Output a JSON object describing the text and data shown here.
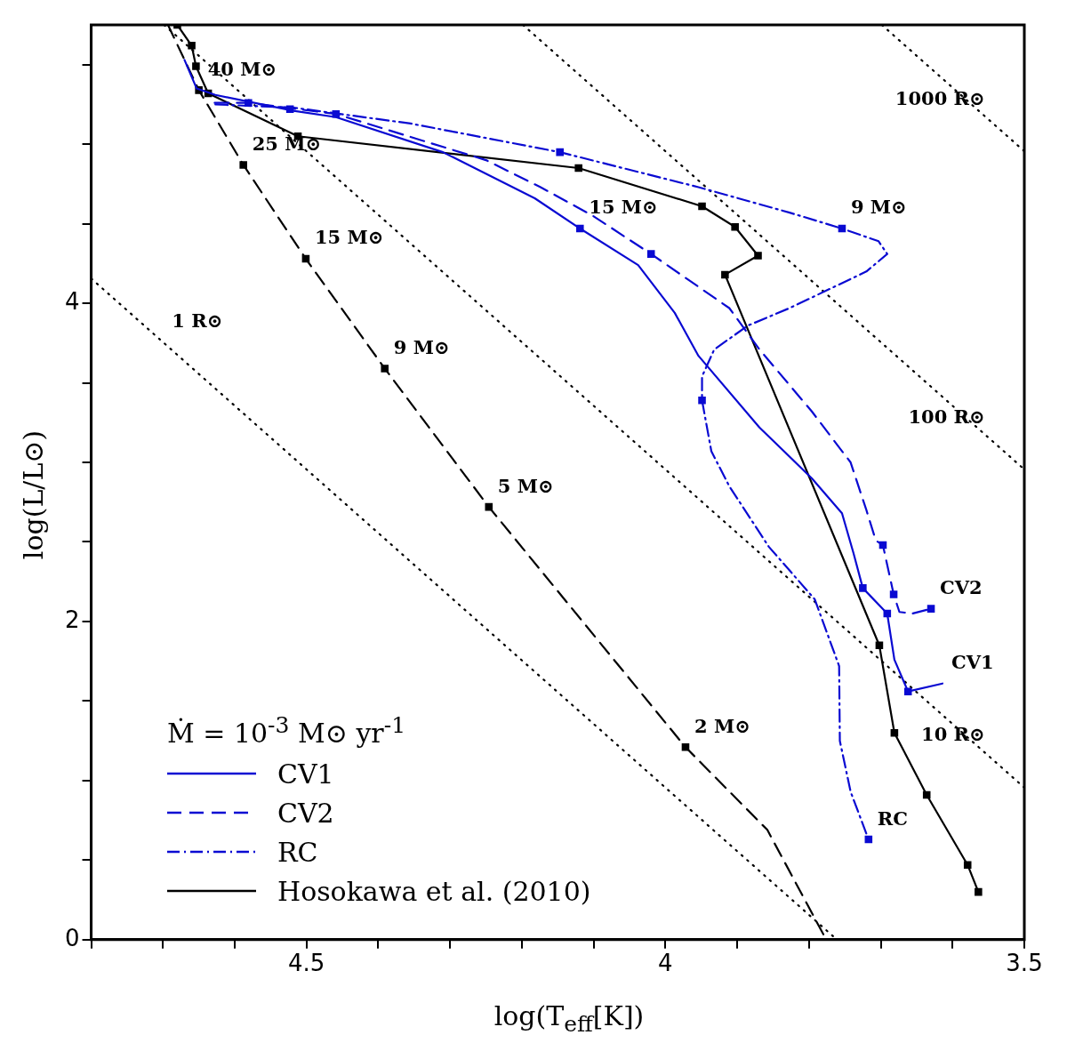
{
  "chart_data": {
    "type": "line",
    "xlabel": "log(T$_{eff}$[K])",
    "ylabel": "log(L/L⊙)",
    "legend_title": "Ṁ = 10$^{-3}$ M⊙ yr$^{-1}$",
    "legend": "bottom left",
    "grid": false,
    "xlim": [
      4.8,
      3.5
    ],
    "xticks": [
      {
        "value": 4.8,
        "label": null
      },
      {
        "value": 4.7,
        "label": null
      },
      {
        "value": 4.6,
        "label": null
      },
      4.5,
      {
        "value": 4.4,
        "label": null
      },
      {
        "value": 4.3,
        "label": null
      },
      {
        "value": 4.2,
        "label": null
      },
      {
        "value": 4.1,
        "label": null
      },
      4,
      {
        "value": 3.9,
        "label": null
      },
      {
        "value": 3.8,
        "label": null
      },
      {
        "value": 3.7,
        "label": null
      },
      {
        "value": 3.6,
        "label": null
      },
      3.5
    ],
    "ylim": [
      0,
      5.75
    ],
    "yticks": [
      0,
      {
        "value": 0.5,
        "label": null
      },
      {
        "value": 1,
        "label": null
      },
      {
        "value": 1.5,
        "label": null
      },
      2,
      {
        "value": 2.5,
        "label": null
      },
      {
        "value": 3,
        "label": null
      },
      {
        "value": 3.5,
        "label": null
      },
      4,
      {
        "value": 4.5,
        "label": null
      },
      {
        "value": 5,
        "label": null
      },
      {
        "value": 5.5,
        "label": null
      }
    ],
    "series": [
      {
        "name": "CV1",
        "type": "line",
        "color": "#0a0ad2",
        "line_style": "solid",
        "marker": "none",
        "x": [
          4.67,
          4.653,
          4.627,
          4.518,
          4.459,
          4.31,
          4.182,
          4.119,
          4.038,
          3.987,
          3.954,
          3.869,
          3.796,
          3.754,
          3.738,
          3.725,
          3.691,
          3.681,
          3.662,
          3.614
        ],
        "values": [
          5.53,
          5.35,
          5.31,
          5.21,
          5.17,
          4.95,
          4.66,
          4.47,
          4.24,
          3.94,
          3.67,
          3.22,
          2.9,
          2.68,
          2.43,
          2.21,
          2.05,
          1.76,
          1.56,
          1.61
        ]
      },
      {
        "name": "CV2",
        "type": "line",
        "color": "#0a0ad2",
        "line_style": "dashed",
        "marker": "none",
        "x": [
          4.628,
          4.581,
          4.459,
          4.25,
          4.174,
          4.101,
          4.02,
          3.911,
          3.869,
          3.796,
          3.742,
          3.72,
          3.707,
          3.697,
          3.682,
          3.674,
          3.656,
          3.63
        ],
        "values": [
          5.26,
          5.26,
          5.19,
          4.9,
          4.73,
          4.55,
          4.31,
          3.97,
          3.71,
          3.32,
          3.0,
          2.7,
          2.51,
          2.48,
          2.17,
          2.06,
          2.05,
          2.08
        ]
      },
      {
        "name": "RC",
        "type": "line",
        "color": "#0a0ad2",
        "line_style": "dashdot",
        "marker": "none",
        "x": [
          4.627,
          4.518,
          4.355,
          4.147,
          3.954,
          3.827,
          3.754,
          3.703,
          3.691,
          3.72,
          3.827,
          3.885,
          3.932,
          3.949,
          3.949,
          3.936,
          3.911,
          3.856,
          3.792,
          3.758,
          3.757,
          3.742,
          3.717
        ],
        "values": [
          5.25,
          5.23,
          5.13,
          4.95,
          4.73,
          4.57,
          4.47,
          4.39,
          4.31,
          4.2,
          3.97,
          3.86,
          3.71,
          3.54,
          3.39,
          3.07,
          2.85,
          2.47,
          2.14,
          1.72,
          1.25,
          0.93,
          0.63
        ]
      },
      {
        "name": "Hosokawa et al. (2010)",
        "type": "line",
        "color": "#000000",
        "line_style": "solid",
        "marker": "square",
        "x": [
          4.68,
          4.66,
          4.654,
          4.637,
          4.512,
          4.121,
          3.949,
          3.903,
          3.871,
          3.917,
          3.702,
          3.681,
          3.636,
          3.579,
          3.564
        ],
        "values": [
          5.75,
          5.62,
          5.49,
          5.32,
          5.05,
          4.85,
          4.61,
          4.48,
          4.3,
          4.18,
          1.85,
          1.3,
          0.91,
          0.47,
          0.3
        ]
      },
      {
        "type": "scatter",
        "color": "#0a0ad2",
        "marker": "square",
        "x": [
          4.581,
          4.523,
          4.459,
          4.119,
          4.147,
          4.02,
          3.754,
          3.949,
          3.725,
          3.691,
          3.697,
          3.682,
          3.63,
          3.662,
          3.717
        ],
        "values": [
          5.26,
          5.22,
          5.19,
          4.47,
          4.95,
          4.31,
          4.47,
          3.39,
          2.21,
          2.05,
          2.48,
          2.17,
          2.08,
          1.56,
          0.63
        ]
      },
      {
        "type": "line",
        "color": "#000000",
        "line_style": "dashed",
        "marker": "none",
        "x": [
          4.693,
          4.65,
          4.588,
          4.501,
          4.391,
          4.246,
          3.972,
          3.858,
          3.776
        ],
        "values": [
          5.75,
          5.34,
          4.87,
          4.28,
          3.59,
          2.72,
          1.21,
          0.69,
          0
        ]
      },
      {
        "type": "scatter",
        "color": "#000000",
        "marker": "square",
        "x": [
          4.65,
          4.588,
          4.501,
          4.391,
          4.246,
          3.972
        ],
        "values": [
          5.34,
          4.87,
          4.28,
          3.59,
          2.72,
          1.21
        ]
      },
      {
        "type": "line",
        "color": "#000000",
        "line_style": "dotted",
        "marker": "none",
        "x": [
          4.8,
          3.761
        ],
        "values": [
          4.156,
          0
        ]
      },
      {
        "type": "line",
        "color": "#000000",
        "line_style": "dotted",
        "marker": "none",
        "x": [
          4.6985,
          3.5
        ],
        "values": [
          5.75,
          0.956
        ]
      },
      {
        "type": "line",
        "color": "#000000",
        "line_style": "dotted",
        "marker": "none",
        "x": [
          4.1985,
          3.5
        ],
        "values": [
          5.75,
          2.956
        ]
      },
      {
        "type": "line",
        "color": "#000000",
        "line_style": "dotted",
        "marker": "none",
        "x": [
          3.6985,
          3.5
        ],
        "values": [
          5.75,
          4.956
        ]
      }
    ],
    "annotations": [
      {
        "text": "40 M⊙",
        "x": 4.65,
        "y": 5.34
      },
      {
        "text": "25 M⊙",
        "x": 4.588,
        "y": 4.87
      },
      {
        "text": "15 M⊙",
        "x": 4.501,
        "y": 4.28
      },
      {
        "text": "9 M⊙",
        "x": 4.391,
        "y": 3.59
      },
      {
        "text": "5 M⊙",
        "x": 4.246,
        "y": 2.72
      },
      {
        "text": "2 M⊙",
        "x": 3.972,
        "y": 1.21
      },
      {
        "text": "15 M⊙",
        "x": 4.119,
        "y": 4.47
      },
      {
        "text": "9 M⊙",
        "x": 3.754,
        "y": 4.47
      },
      {
        "text": "CV2",
        "x": 3.63,
        "y": 2.08
      },
      {
        "text": "CV1",
        "x": 3.614,
        "y": 1.61
      },
      {
        "text": "RC",
        "x": 3.717,
        "y": 0.63
      },
      {
        "text": "1 R⊙",
        "x": 4.7,
        "y": 3.756
      },
      {
        "text": "10 R⊙",
        "x": 3.55,
        "y": 1.156
      },
      {
        "text": "100 R⊙",
        "x": 3.55,
        "y": 3.156
      },
      {
        "text": "1000 R⊙",
        "x": 3.55,
        "y": 5.156
      }
    ]
  }
}
